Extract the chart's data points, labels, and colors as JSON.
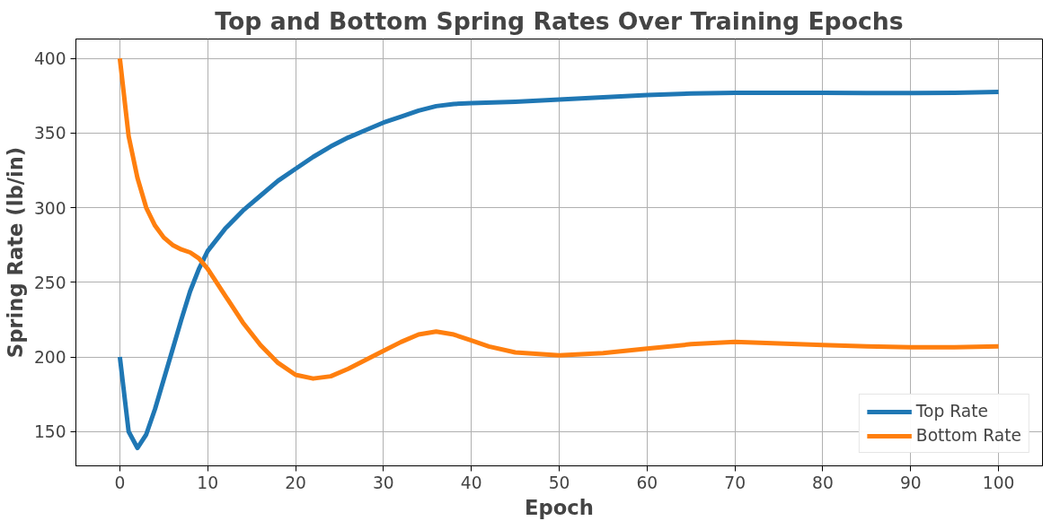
{
  "chart_data": {
    "type": "line",
    "title": "Top and Bottom Spring Rates Over Training Epochs",
    "xlabel": "Epoch",
    "ylabel": "Spring Rate (lb/in)",
    "xlim": [
      -5,
      105
    ],
    "ylim": [
      127,
      413
    ],
    "xticks": [
      0,
      10,
      20,
      30,
      40,
      50,
      60,
      70,
      80,
      90,
      100
    ],
    "yticks": [
      150,
      200,
      250,
      300,
      350,
      400
    ],
    "grid": true,
    "legend": "bottom right",
    "line_style": "solid",
    "marker": "none",
    "series": [
      {
        "name": "Top Rate",
        "color": "#1f77b4",
        "x": [
          0,
          1,
          2,
          3,
          4,
          5,
          6,
          7,
          8,
          9,
          10,
          12,
          14,
          16,
          18,
          20,
          22,
          24,
          26,
          28,
          30,
          32,
          34,
          36,
          38,
          40,
          45,
          50,
          55,
          60,
          65,
          70,
          75,
          80,
          85,
          90,
          95,
          100
        ],
        "values": [
          200,
          150,
          139,
          148,
          165,
          185,
          205,
          225,
          244,
          259,
          271,
          286,
          298,
          308,
          318,
          326,
          334,
          341,
          347,
          352,
          357,
          361,
          365,
          368,
          369.5,
          370,
          371,
          372.5,
          374,
          375.5,
          376.5,
          377,
          377,
          377,
          376.8,
          376.8,
          377,
          377.5
        ]
      },
      {
        "name": "Bottom Rate",
        "color": "#ff7f0e",
        "x": [
          0,
          1,
          2,
          3,
          4,
          5,
          6,
          7,
          8,
          9,
          10,
          12,
          14,
          16,
          18,
          20,
          22,
          24,
          26,
          28,
          30,
          32,
          34,
          36,
          38,
          40,
          42,
          45,
          50,
          55,
          60,
          65,
          70,
          75,
          80,
          85,
          90,
          95,
          100
        ],
        "values": [
          400,
          348,
          320,
          300,
          288,
          280,
          275,
          272,
          270,
          266,
          259,
          241,
          223,
          208,
          196,
          188,
          185.5,
          187,
          192,
          198,
          204,
          210,
          215,
          217,
          215,
          211,
          207,
          203,
          201,
          202.5,
          205.5,
          208.5,
          210,
          209,
          208,
          207,
          206.5,
          206.5,
          207
        ]
      }
    ]
  }
}
